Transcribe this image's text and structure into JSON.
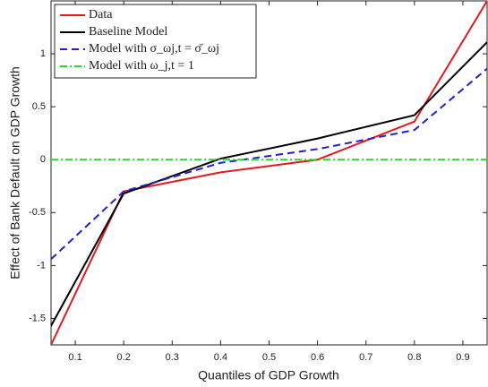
{
  "chart_data": {
    "type": "line",
    "x_label": "Quantiles of GDP Growth",
    "y_label": "Effect of Bank Default on GDP Growth",
    "x": [
      0.05,
      0.2,
      0.4,
      0.6,
      0.8,
      0.95
    ],
    "series": [
      {
        "name": "Data",
        "color": "#e31a1c",
        "style": "solid",
        "values": [
          -1.75,
          -0.3,
          -0.12,
          0.0,
          0.36,
          1.5
        ]
      },
      {
        "name": "Baseline Model",
        "color": "#000000",
        "style": "solid",
        "values": [
          -1.57,
          -0.32,
          0.01,
          0.2,
          0.42,
          1.11
        ]
      },
      {
        "name": "Model with σ_ωj,t = σ̄_ωj",
        "color": "#1f1fd6",
        "style": "dashed",
        "values": [
          -0.94,
          -0.3,
          -0.03,
          0.1,
          0.28,
          0.86
        ]
      },
      {
        "name": "Model with ω_j,t = 1",
        "color": "#22dd22",
        "style": "dashdot",
        "values": [
          0,
          0,
          0,
          0,
          0,
          0
        ]
      }
    ],
    "xlim": [
      0.05,
      0.95
    ],
    "ylim": [
      -1.75,
      1.5
    ],
    "xticks": [
      0.1,
      0.2,
      0.3,
      0.4,
      0.5,
      0.6,
      0.7,
      0.8,
      0.9
    ],
    "yticks": [
      -1.5,
      -1,
      -0.5,
      0,
      0.5,
      1
    ],
    "legend": "upper-left",
    "grid": false
  }
}
